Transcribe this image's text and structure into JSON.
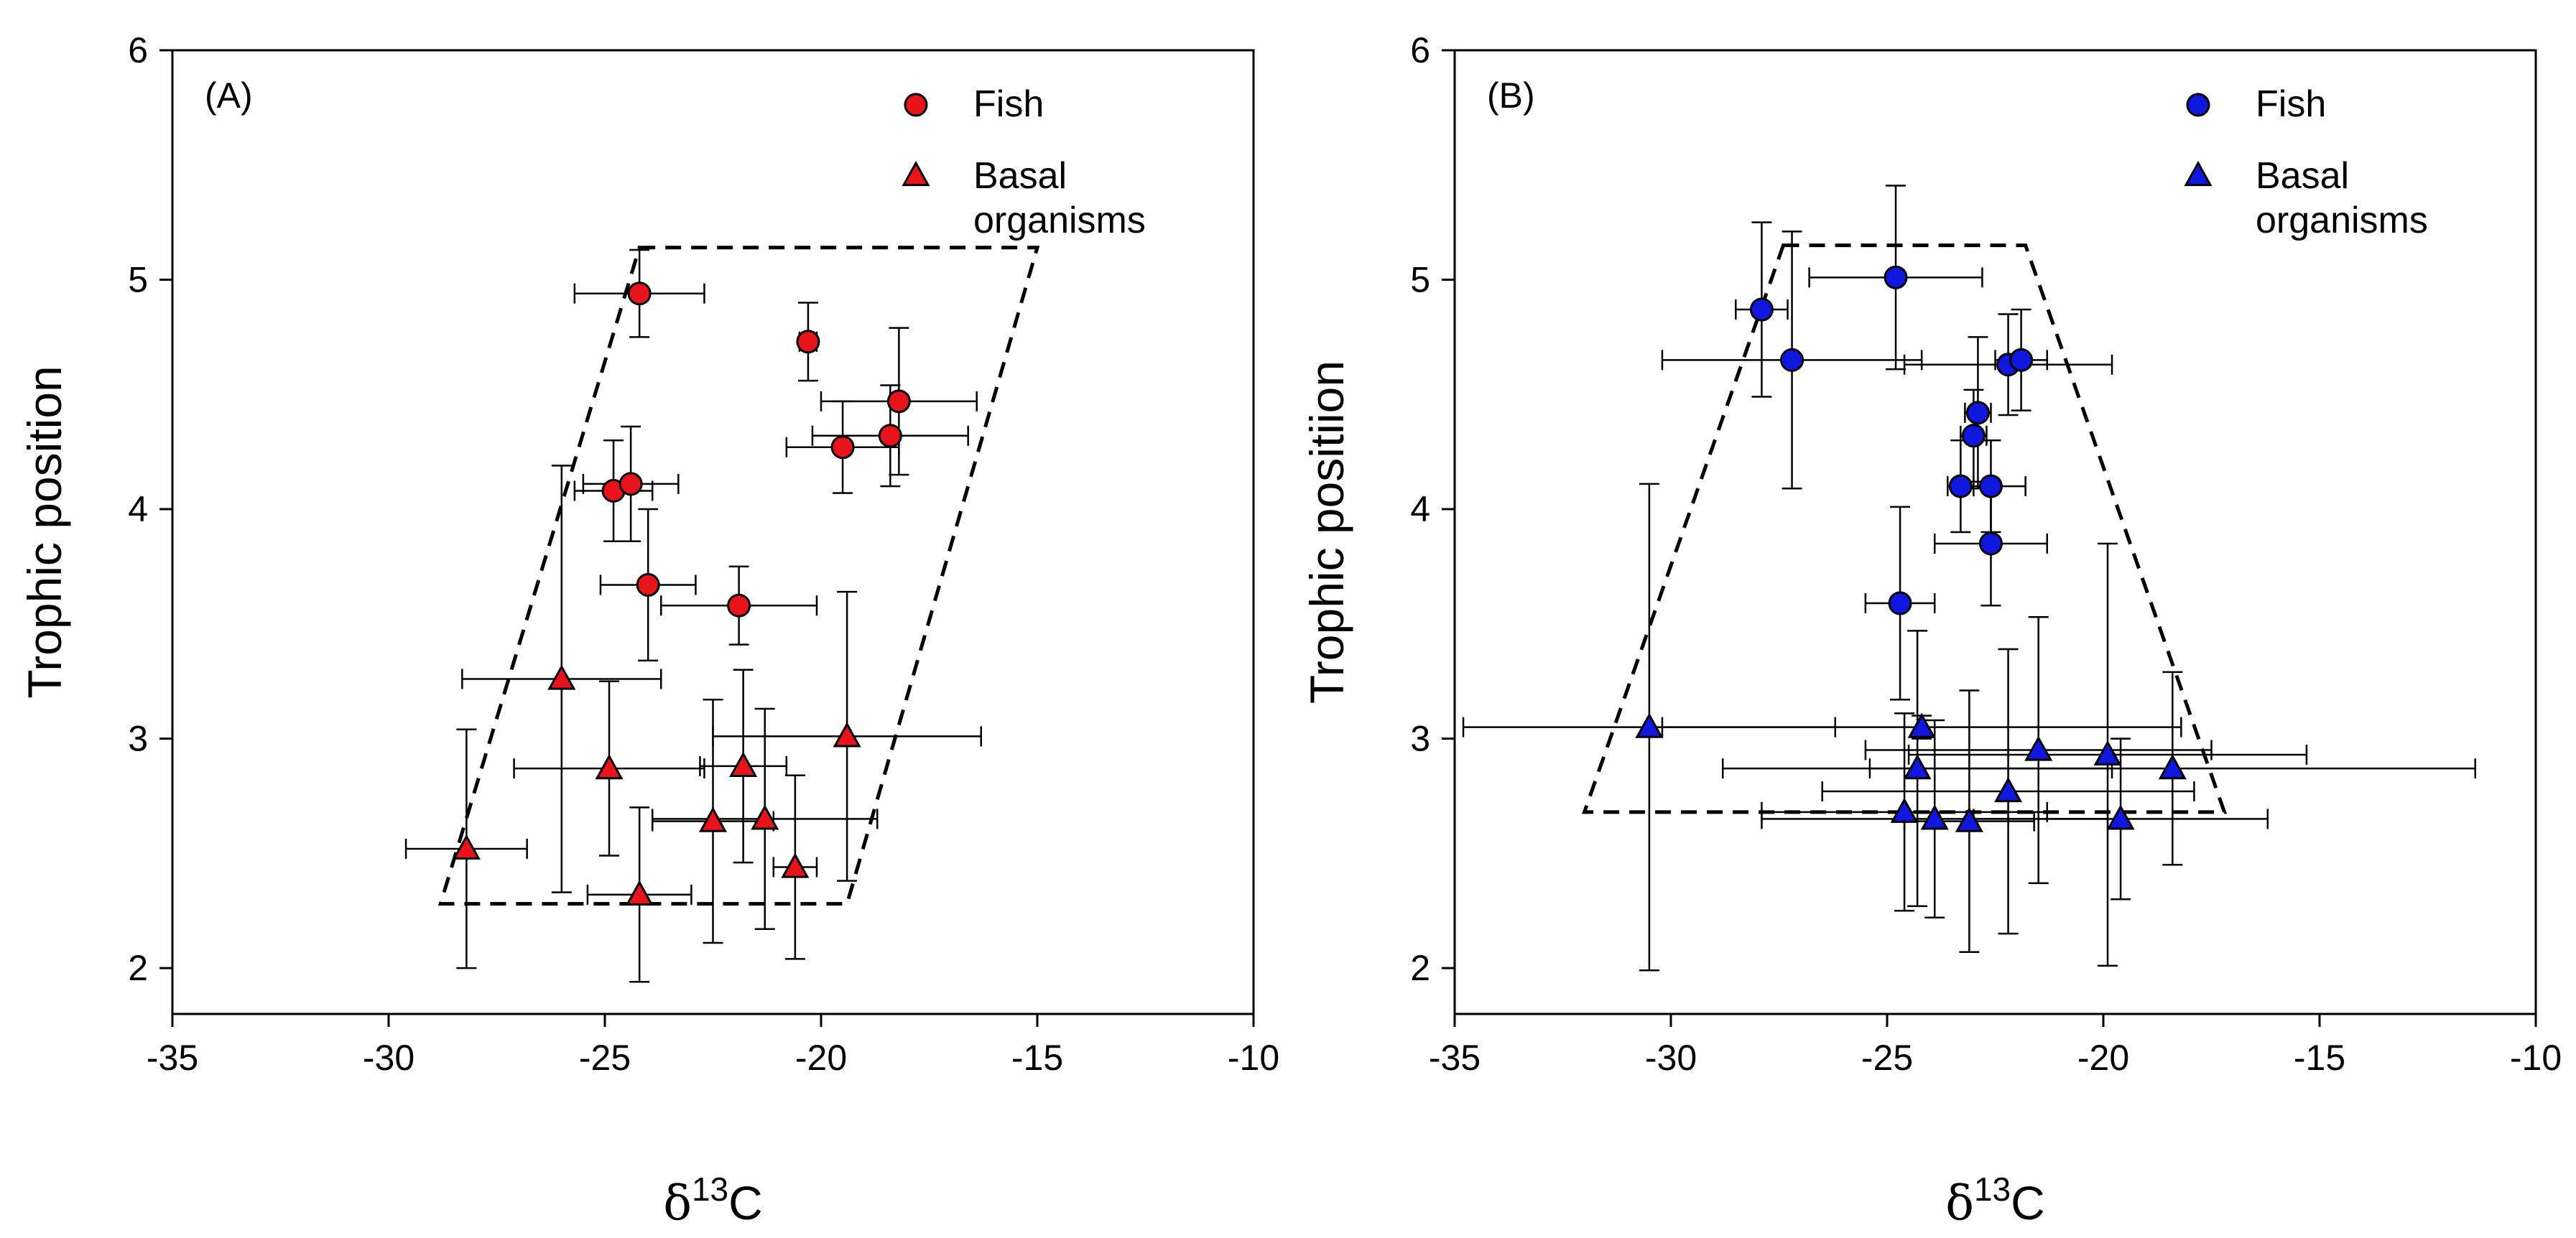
{
  "chart_data": [
    {
      "type": "scatter",
      "panel_label": "(A)",
      "xlabel": "δ13C",
      "ylabel": "Trophic position",
      "xlim": [
        -35,
        -10
      ],
      "ylim": [
        1.8,
        6
      ],
      "xticks": [
        -35,
        -30,
        -25,
        -20,
        -15,
        -10
      ],
      "yticks": [
        2,
        3,
        4,
        5,
        6
      ],
      "legend_placement": "top-right",
      "colors": {
        "fish": "#e8141c",
        "basal": "#e8141c",
        "border": "#000000"
      },
      "series": [
        {
          "name": "Fish",
          "marker": "circle",
          "points": [
            {
              "x": -24.2,
              "y": 4.94,
              "xerr": 1.5,
              "yerr": 0.19
            },
            {
              "x": -20.3,
              "y": 4.73,
              "xerr": 0.2,
              "yerr": 0.17
            },
            {
              "x": -18.2,
              "y": 4.47,
              "xerr": 1.8,
              "yerr": 0.32
            },
            {
              "x": -19.5,
              "y": 4.27,
              "xerr": 1.3,
              "yerr": 0.2
            },
            {
              "x": -18.4,
              "y": 4.32,
              "xerr": 1.8,
              "yerr": 0.22
            },
            {
              "x": -24.8,
              "y": 4.08,
              "xerr": 0.9,
              "yerr": 0.22
            },
            {
              "x": -24.4,
              "y": 4.11,
              "xerr": 1.1,
              "yerr": 0.25
            },
            {
              "x": -24.0,
              "y": 3.67,
              "xerr": 1.1,
              "yerr": 0.33
            },
            {
              "x": -21.9,
              "y": 3.58,
              "xerr": 1.8,
              "yerr": 0.17
            }
          ]
        },
        {
          "name": "Basal organisms",
          "marker": "triangle",
          "points": [
            {
              "x": -26.0,
              "y": 3.26,
              "xerr": 2.3,
              "yerr": 0.93
            },
            {
              "x": -24.9,
              "y": 2.87,
              "xerr": 2.2,
              "yerr": 0.38
            },
            {
              "x": -21.8,
              "y": 2.88,
              "xerr": 1.0,
              "yerr": 0.42
            },
            {
              "x": -19.4,
              "y": 3.01,
              "xerr": 3.1,
              "yerr": 0.63
            },
            {
              "x": -28.2,
              "y": 2.52,
              "xerr": 1.4,
              "yerr": 0.52
            },
            {
              "x": -22.5,
              "y": 2.64,
              "xerr": 1.4,
              "yerr": 0.53
            },
            {
              "x": -21.3,
              "y": 2.65,
              "xerr": 2.6,
              "yerr": 0.48
            },
            {
              "x": -20.6,
              "y": 2.44,
              "xerr": 0.5,
              "yerr": 0.4
            },
            {
              "x": -24.2,
              "y": 2.32,
              "xerr": 1.2,
              "yerr": 0.38
            }
          ]
        }
      ],
      "hull": [
        [
          -24.2,
          5.14
        ],
        [
          -15.0,
          5.14
        ],
        [
          -19.4,
          2.28
        ],
        [
          -28.8,
          2.28
        ]
      ]
    },
    {
      "type": "scatter",
      "panel_label": "(B)",
      "xlabel": "δ13C",
      "ylabel": "Trophic positiion",
      "xlim": [
        -35,
        -10
      ],
      "ylim": [
        1.8,
        6
      ],
      "xticks": [
        -35,
        -30,
        -25,
        -20,
        -15,
        -10
      ],
      "yticks": [
        2,
        3,
        4,
        5,
        6
      ],
      "legend_placement": "top-right",
      "colors": {
        "fish": "#1018e0",
        "basal": "#1018e0",
        "border": "#000000"
      },
      "series": [
        {
          "name": "Fish",
          "marker": "circle",
          "points": [
            {
              "x": -27.9,
              "y": 4.87,
              "xerr": 0.6,
              "yerr": 0.38
            },
            {
              "x": -24.8,
              "y": 5.01,
              "xerr": 2.0,
              "yerr": 0.4
            },
            {
              "x": -27.2,
              "y": 4.65,
              "xerr": 3.0,
              "yerr": 0.56
            },
            {
              "x": -22.2,
              "y": 4.63,
              "xerr": 2.4,
              "yerr": 0.22
            },
            {
              "x": -21.9,
              "y": 4.65,
              "xerr": 0.6,
              "yerr": 0.22
            },
            {
              "x": -22.9,
              "y": 4.42,
              "xerr": 0.3,
              "yerr": 0.33
            },
            {
              "x": -23.0,
              "y": 4.32,
              "xerr": 0.3,
              "yerr": 0.2
            },
            {
              "x": -23.3,
              "y": 4.1,
              "xerr": 0.3,
              "yerr": 0.2
            },
            {
              "x": -22.6,
              "y": 4.1,
              "xerr": 0.8,
              "yerr": 0.2
            },
            {
              "x": -22.6,
              "y": 3.85,
              "xerr": 1.3,
              "yerr": 0.27
            },
            {
              "x": -24.7,
              "y": 3.59,
              "xerr": 0.8,
              "yerr": 0.42
            }
          ]
        },
        {
          "name": "Basal organisms",
          "marker": "triangle",
          "points": [
            {
              "x": -30.5,
              "y": 3.05,
              "xerr": 4.3,
              "yerr": 1.06
            },
            {
              "x": -24.2,
              "y": 3.05,
              "xerr": 6.0,
              "yerr": 0.05
            },
            {
              "x": -21.5,
              "y": 2.95,
              "xerr": 4.0,
              "yerr": 0.58
            },
            {
              "x": -19.9,
              "y": 2.93,
              "xerr": 4.6,
              "yerr": 0.92
            },
            {
              "x": -18.4,
              "y": 2.87,
              "xerr": 7.0,
              "yerr": 0.42
            },
            {
              "x": -24.3,
              "y": 2.87,
              "xerr": 4.5,
              "yerr": 0.6
            },
            {
              "x": -22.2,
              "y": 2.77,
              "xerr": 4.3,
              "yerr": 0.62
            },
            {
              "x": -24.6,
              "y": 2.68,
              "xerr": 3.3,
              "yerr": 0.43
            },
            {
              "x": -23.9,
              "y": 2.65,
              "xerr": 4.0,
              "yerr": 0.43
            },
            {
              "x": -23.1,
              "y": 2.64,
              "xerr": 1.5,
              "yerr": 0.57
            },
            {
              "x": -19.6,
              "y": 2.65,
              "xerr": 3.4,
              "yerr": 0.35
            }
          ]
        }
      ],
      "hull": [
        [
          -27.4,
          5.15
        ],
        [
          -21.8,
          5.15
        ],
        [
          -17.2,
          2.68
        ],
        [
          -32.0,
          2.68
        ]
      ]
    }
  ]
}
